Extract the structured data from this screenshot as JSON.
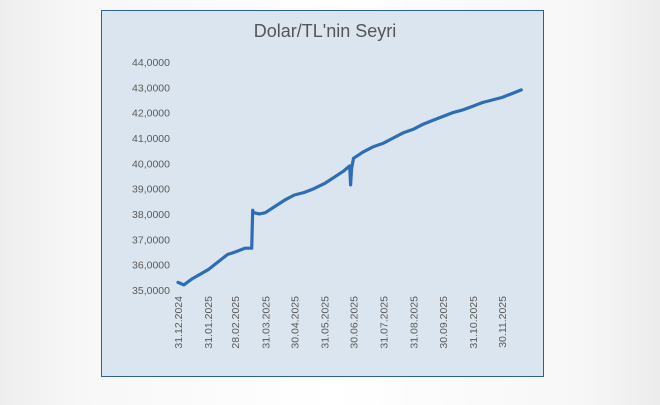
{
  "chart_data": {
    "type": "line",
    "title": "Dolar/TL'nin Seyri",
    "xlabel": "",
    "ylabel": "",
    "x_ticks": [
      "31.12.2024",
      "31.01.2025",
      "28.02.2025",
      "31.03.2025",
      "30.04.2025",
      "31.05.2025",
      "30.06.2025",
      "31.07.2025",
      "31.08.2025",
      "30.09.2025",
      "31.10.2025",
      "30.11.2025"
    ],
    "y_ticks": [
      "35,0000",
      "36,0000",
      "37,0000",
      "38,0000",
      "39,0000",
      "40,0000",
      "41,0000",
      "42,0000",
      "43,0000",
      "44,0000"
    ],
    "ylim": [
      35,
      44
    ],
    "xlim": [
      "2024-12-31",
      "2025-12-31"
    ],
    "grid": false,
    "legend": "none",
    "line_color": "#2e6db4",
    "series": [
      {
        "x": [
          "2024-12-31",
          "2025-01-06",
          "2025-01-15",
          "2025-01-31",
          "2025-02-10",
          "2025-02-20",
          "2025-02-28",
          "2025-03-10",
          "2025-03-17",
          "2025-03-18",
          "2025-03-19",
          "2025-03-25",
          "2025-03-31",
          "2025-04-10",
          "2025-04-20",
          "2025-04-30",
          "2025-05-10",
          "2025-05-20",
          "2025-05-31",
          "2025-06-10",
          "2025-06-20",
          "2025-06-26",
          "2025-06-27",
          "2025-06-28",
          "2025-06-30",
          "2025-07-10",
          "2025-07-20",
          "2025-07-31",
          "2025-08-10",
          "2025-08-20",
          "2025-08-31",
          "2025-09-10",
          "2025-09-20",
          "2025-09-30",
          "2025-10-10",
          "2025-10-20",
          "2025-10-31",
          "2025-11-10",
          "2025-11-20",
          "2025-11-30",
          "2025-12-10",
          "2025-12-20"
        ],
        "y": [
          35.3,
          35.2,
          35.45,
          35.8,
          36.1,
          36.4,
          36.5,
          36.65,
          36.65,
          38.15,
          38.05,
          38.0,
          38.05,
          38.3,
          38.55,
          38.75,
          38.85,
          39.0,
          39.2,
          39.45,
          39.7,
          39.9,
          39.15,
          39.8,
          40.2,
          40.45,
          40.65,
          40.8,
          41.0,
          41.2,
          41.35,
          41.55,
          41.7,
          41.85,
          42.0,
          42.1,
          42.25,
          42.4,
          42.5,
          42.6,
          42.75,
          42.9
        ]
      }
    ]
  }
}
